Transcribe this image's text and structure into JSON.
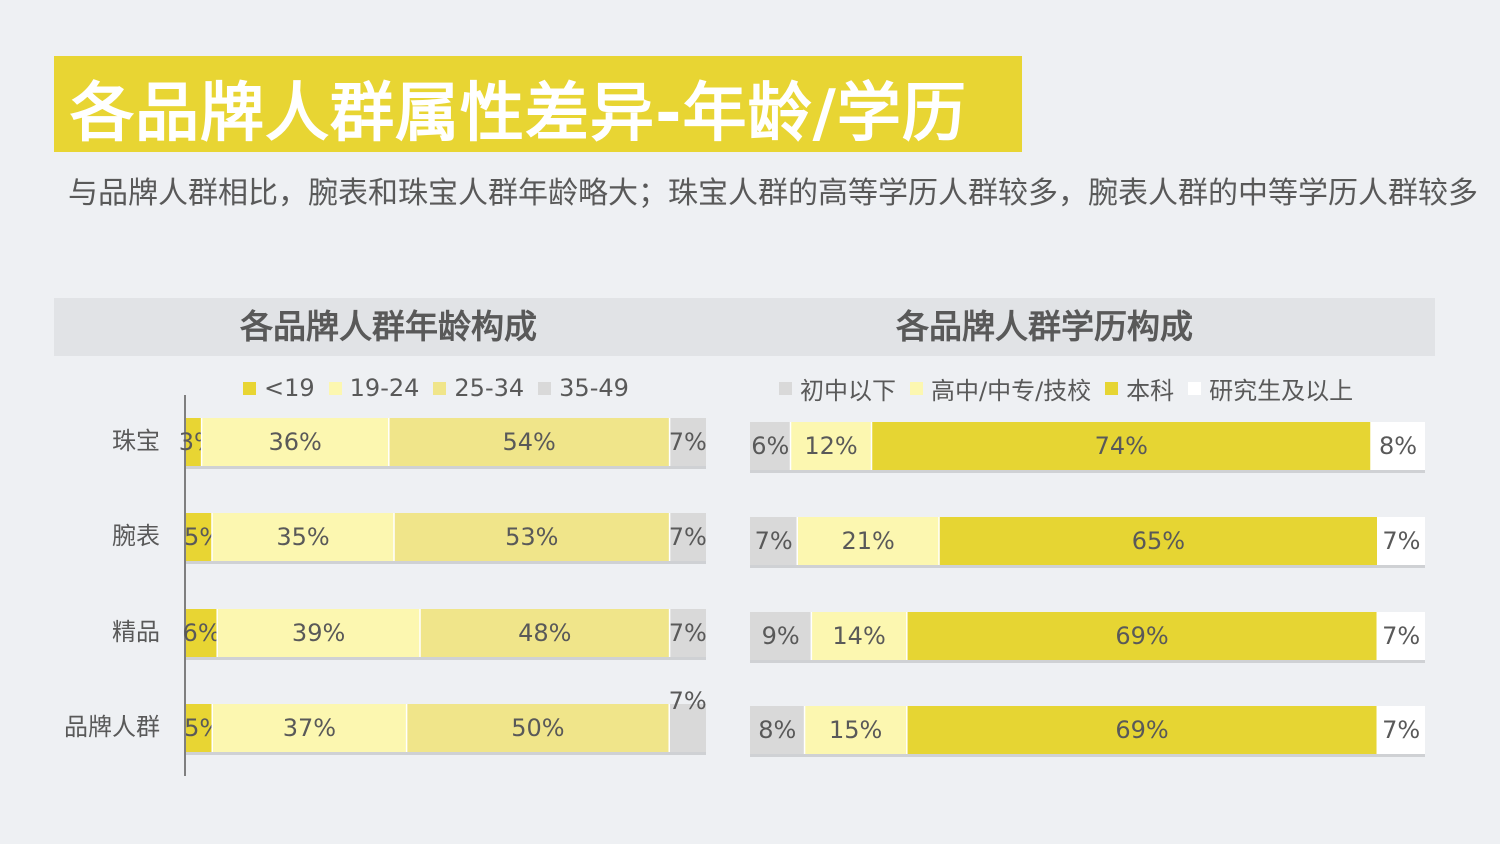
{
  "title": "各品牌人群属性差异-年龄/学历",
  "subtitle": "与品牌人群相比，腕表和珠宝人群年龄略大；珠宝人群的高等学历人群较多，腕表人群的中等学历人群较多",
  "colors": {
    "title_band": "#e8d533",
    "header_band": "#e1e3e6",
    "text": "#595959"
  },
  "chart_data": [
    {
      "type": "bar",
      "stacked": true,
      "orientation": "horizontal",
      "title": "各品牌人群年龄构成",
      "categories": [
        "珠宝",
        "腕表",
        "精品",
        "品牌人群"
      ],
      "series": [
        {
          "name": "<19",
          "color": "#e8d533",
          "values": [
            3,
            5,
            6,
            5
          ],
          "labels": [
            "3%",
            "5%",
            "6%",
            "5%"
          ]
        },
        {
          "name": "19-24",
          "color": "#fcf7b0",
          "values": [
            36,
            35,
            39,
            37
          ],
          "labels": [
            "36%",
            "35%",
            "39%",
            "37%"
          ]
        },
        {
          "name": "25-34",
          "color": "#f0e58a",
          "values": [
            54,
            53,
            48,
            50
          ],
          "labels": [
            "54%",
            "53%",
            "48%",
            "50%"
          ]
        },
        {
          "name": "35-49",
          "color": "#d9d9d9",
          "values": [
            7,
            7,
            7,
            7
          ],
          "labels": [
            "7%",
            "7%",
            "7%",
            "7%"
          ]
        }
      ],
      "legend_position": "top"
    },
    {
      "type": "bar",
      "stacked": true,
      "orientation": "horizontal",
      "title": "各品牌人群学历构成",
      "categories": [
        "珠宝",
        "腕表",
        "精品",
        "品牌人群"
      ],
      "series": [
        {
          "name": "初中以下",
          "color": "#d9d9d9",
          "values": [
            6,
            7,
            9,
            8
          ],
          "labels": [
            "6%",
            "7%",
            "9%",
            "8%"
          ]
        },
        {
          "name": "高中/中专/技校",
          "color": "#fcf7b0",
          "values": [
            12,
            21,
            14,
            15
          ],
          "labels": [
            "12%",
            "21%",
            "14%",
            "15%"
          ]
        },
        {
          "name": "本科",
          "color": "#e6d533",
          "values": [
            74,
            65,
            69,
            69
          ],
          "labels": [
            "74%",
            "65%",
            "69%",
            "69%"
          ]
        },
        {
          "name": "研究生及以上",
          "color": "#ffffff",
          "values": [
            8,
            7,
            7,
            7
          ],
          "labels": [
            "8%",
            "7%",
            "7%",
            "7%"
          ]
        }
      ],
      "legend_position": "top"
    }
  ]
}
